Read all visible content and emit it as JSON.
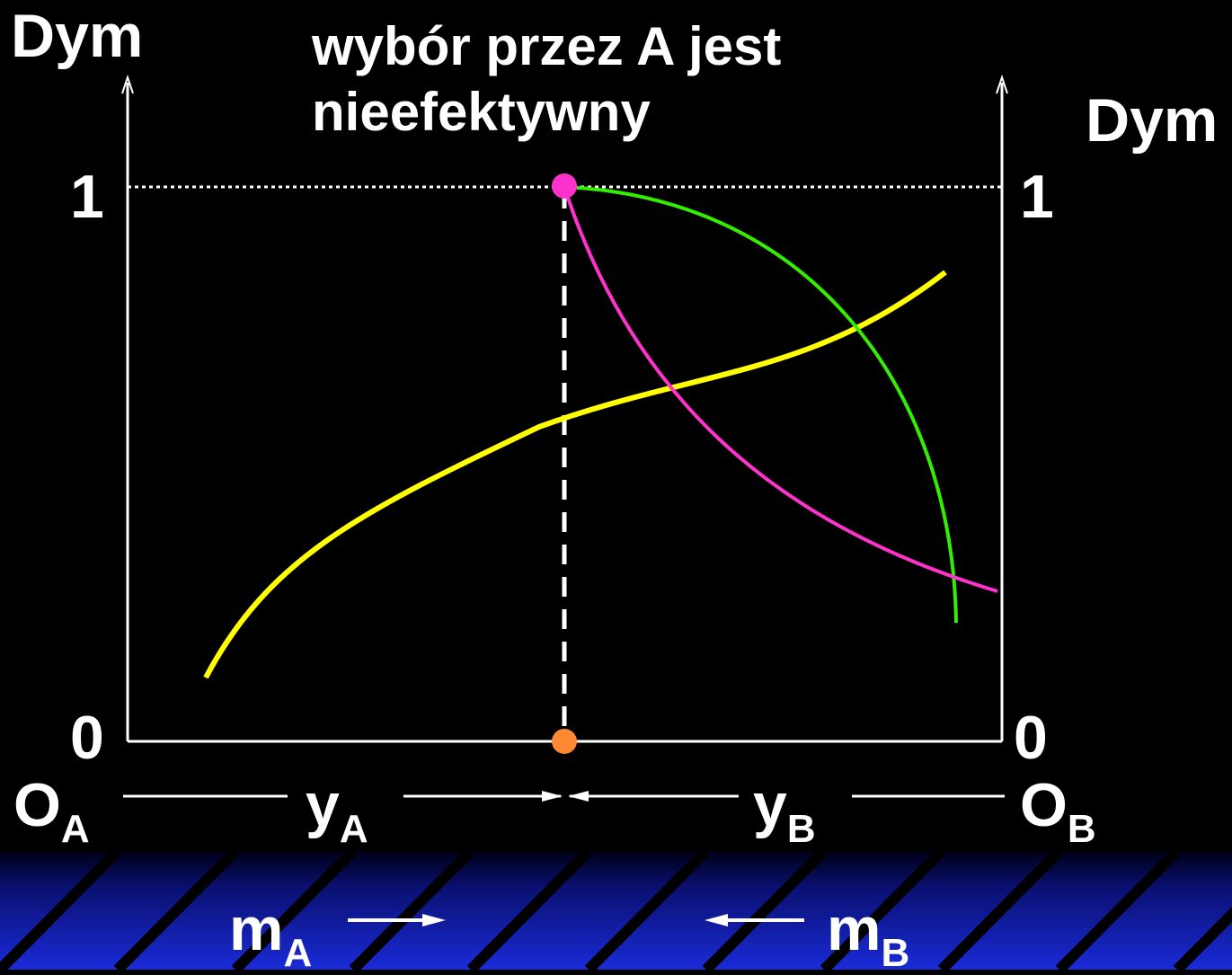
{
  "title_lines": [
    "wybór przez A jest",
    "nieefektywny"
  ],
  "left_axis_label": "Dym",
  "right_axis_label": "Dym",
  "left_top_tick": "1",
  "left_bottom_tick": "0",
  "right_top_tick": "1",
  "right_bottom_tick": "0",
  "origin_a": {
    "main": "O",
    "sub": "A"
  },
  "origin_b": {
    "main": "O",
    "sub": "B"
  },
  "y_a": {
    "main": "y",
    "sub": "A"
  },
  "y_b": {
    "main": "y",
    "sub": "B"
  },
  "m_a": {
    "main": "m",
    "sub": "A"
  },
  "m_b": {
    "main": "m",
    "sub": "B"
  },
  "colors": {
    "yellow_curve": "#ffff00",
    "green_curve": "#33ee00",
    "magenta_curve": "#ff33cc",
    "top_point": "#ff33cc",
    "bottom_point": "#ff8833",
    "band_blue": "#1a2bd8"
  }
}
